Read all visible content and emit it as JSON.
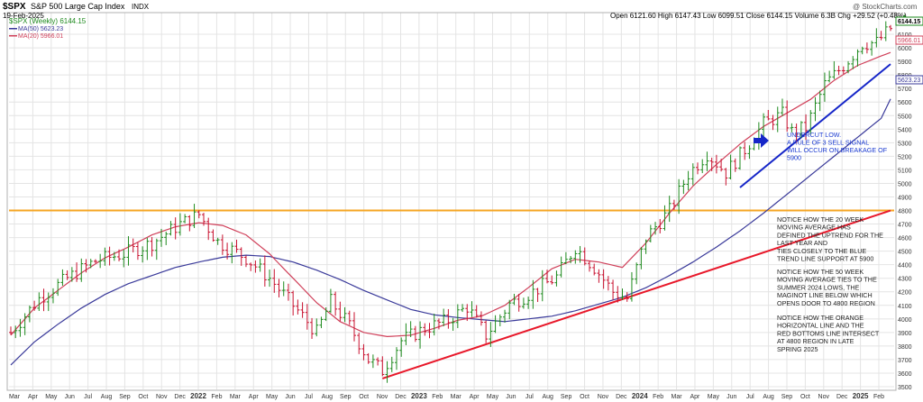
{
  "header": {
    "symbol": "$SPX",
    "name": "S&P 500 Large Cap Index",
    "exchange": "INDX",
    "date": "19-Feb-2025",
    "watermark": "@ StockCharts.com",
    "legend_symbol": "$SPX (Weekly) 6144.15",
    "legend_ma50": "MA(50) 5623.23",
    "legend_ma20": "MA(20) 5966.01",
    "ohlc": "Open 6121.60  High 6147.43  Low 6099.51  Close 6144.15  Volume 6.3B  Chg +29.52 (+0.48%)",
    "ohlc_arrow": "▲"
  },
  "annotations": {
    "undercut": [
      "UNDERCUT LOW.",
      "A RULE OF 3 SELL SIGNAL",
      "WILL OCCUR ON BREAKAGE OF",
      "5900"
    ],
    "note1": [
      "NOTICE HOW THE 20 WEEK",
      "MOVING AVERAGE HAS",
      "DEFINED THE UPTREND FOR THE",
      "LAST YEAR AND",
      "TIES CLOSELY TO THE BLUE",
      "TREND LINE SUPPORT AT 5900"
    ],
    "note2": [
      "NOTICE HOW THE 50 WEEK",
      "MOVING AVERAGE TIES TO THE",
      "SUMMER 2024 LOWS, THE",
      "MAGINOT LINE BELOW WHICH",
      "OPENS DOOR TO 4800 REGION"
    ],
    "note3": [
      "NOTICE HOW THE ORANGE",
      "HORIZONTAL LINE AND THE",
      "RED BOTTOMS LINE INTERSECT",
      "AT 4800 REGION IN LATE",
      "SPRING 2025"
    ]
  },
  "colors": {
    "up": "#1e8a1e",
    "down": "#c8102e",
    "ma20": "#d0405a",
    "ma50": "#3a3a9a",
    "orange": "#f5a623",
    "red": "#e8182a",
    "blue": "#1626c8",
    "note": "#1a3ad0",
    "grid": "#e4e4e4"
  },
  "chart_data": {
    "type": "candlestick-ohlc-weekly",
    "ylim": [
      3480,
      6260
    ],
    "yticks": [
      3500,
      3600,
      3700,
      3800,
      3900,
      4000,
      4100,
      4200,
      4300,
      4400,
      4500,
      4600,
      4700,
      4800,
      4900,
      5000,
      5100,
      5200,
      5300,
      5400,
      5500,
      5600,
      5700,
      5800,
      5900,
      6000,
      6100
    ],
    "price_labels": {
      "last": "6144.15",
      "ma20": "5966.01",
      "ma50": "5623.23"
    },
    "xticks": [
      "Mar",
      "Apr",
      "May",
      "Jun",
      "Jul",
      "Aug",
      "Sep",
      "Oct",
      "Nov",
      "Dec",
      "2022",
      "Feb",
      "Mar",
      "Apr",
      "May",
      "Jun",
      "Jul",
      "Aug",
      "Sep",
      "Oct",
      "Nov",
      "Dec",
      "2023",
      "Feb",
      "Mar",
      "Apr",
      "May",
      "Jun",
      "Jul",
      "Aug",
      "Sep",
      "Oct",
      "Nov",
      "Dec",
      "2024",
      "Feb",
      "Mar",
      "Apr",
      "May",
      "Jun",
      "Jul",
      "Aug",
      "Sep",
      "Oct",
      "Nov",
      "Dec",
      "2025",
      "Feb"
    ],
    "series": [
      {
        "name": "$SPX (Weekly)",
        "kind": "price"
      },
      {
        "name": "MA(50)",
        "kind": "ma50",
        "points": [
          [
            0,
            3660
          ],
          [
            5,
            3830
          ],
          [
            10,
            3960
          ],
          [
            15,
            4080
          ],
          [
            20,
            4180
          ],
          [
            25,
            4260
          ],
          [
            30,
            4320
          ],
          [
            35,
            4380
          ],
          [
            40,
            4420
          ],
          [
            45,
            4455
          ],
          [
            50,
            4470
          ],
          [
            55,
            4460
          ],
          [
            60,
            4420
          ],
          [
            65,
            4360
          ],
          [
            70,
            4290
          ],
          [
            75,
            4210
          ],
          [
            80,
            4140
          ],
          [
            85,
            4070
          ],
          [
            90,
            4030
          ],
          [
            95,
            4010
          ],
          [
            100,
            3995
          ],
          [
            105,
            3980
          ],
          [
            110,
            4000
          ],
          [
            115,
            4020
          ],
          [
            120,
            4060
          ],
          [
            125,
            4110
          ],
          [
            130,
            4160
          ],
          [
            135,
            4230
          ],
          [
            140,
            4320
          ],
          [
            145,
            4420
          ],
          [
            150,
            4530
          ],
          [
            155,
            4650
          ],
          [
            160,
            4780
          ],
          [
            165,
            4920
          ],
          [
            170,
            5060
          ],
          [
            175,
            5200
          ],
          [
            180,
            5340
          ],
          [
            185,
            5480
          ],
          [
            187,
            5623
          ]
        ]
      },
      {
        "name": "MA(20)",
        "kind": "ma20",
        "points": [
          [
            0,
            3880
          ],
          [
            5,
            4080
          ],
          [
            10,
            4210
          ],
          [
            15,
            4340
          ],
          [
            20,
            4450
          ],
          [
            25,
            4530
          ],
          [
            30,
            4620
          ],
          [
            35,
            4680
          ],
          [
            40,
            4710
          ],
          [
            45,
            4690
          ],
          [
            50,
            4620
          ],
          [
            55,
            4480
          ],
          [
            60,
            4300
          ],
          [
            65,
            4120
          ],
          [
            70,
            3980
          ],
          [
            75,
            3900
          ],
          [
            80,
            3870
          ],
          [
            85,
            3880
          ],
          [
            90,
            3930
          ],
          [
            95,
            3990
          ],
          [
            100,
            4020
          ],
          [
            105,
            4100
          ],
          [
            110,
            4230
          ],
          [
            115,
            4370
          ],
          [
            120,
            4440
          ],
          [
            125,
            4420
          ],
          [
            130,
            4380
          ],
          [
            135,
            4560
          ],
          [
            140,
            4780
          ],
          [
            145,
            4980
          ],
          [
            150,
            5140
          ],
          [
            155,
            5290
          ],
          [
            160,
            5420
          ],
          [
            165,
            5520
          ],
          [
            170,
            5620
          ],
          [
            175,
            5760
          ],
          [
            180,
            5870
          ],
          [
            185,
            5940
          ],
          [
            187,
            5966
          ]
        ]
      },
      {
        "name": "",
        "kind": "close",
        "points": [
          [
            0,
            3900
          ],
          [
            6,
            4150
          ],
          [
            12,
            4300
          ],
          [
            18,
            4430
          ],
          [
            24,
            4480
          ],
          [
            30,
            4560
          ],
          [
            36,
            4700
          ],
          [
            40,
            4770
          ],
          [
            44,
            4570
          ],
          [
            50,
            4450
          ],
          [
            55,
            4300
          ],
          [
            60,
            4100
          ],
          [
            65,
            3900
          ],
          [
            68,
            4130
          ],
          [
            72,
            3950
          ],
          [
            76,
            3700
          ],
          [
            79,
            3620
          ],
          [
            83,
            3840
          ],
          [
            88,
            3930
          ],
          [
            93,
            3990
          ],
          [
            97,
            4090
          ],
          [
            101,
            3880
          ],
          [
            106,
            4110
          ],
          [
            111,
            4200
          ],
          [
            116,
            4310
          ],
          [
            120,
            4530
          ],
          [
            124,
            4380
          ],
          [
            128,
            4200
          ],
          [
            131,
            4150
          ],
          [
            135,
            4600
          ],
          [
            140,
            4800
          ],
          [
            144,
            5070
          ],
          [
            148,
            5220
          ],
          [
            152,
            5080
          ],
          [
            156,
            5250
          ],
          [
            160,
            5440
          ],
          [
            164,
            5510
          ],
          [
            166,
            5380
          ],
          [
            169,
            5410
          ],
          [
            173,
            5730
          ],
          [
            177,
            5870
          ],
          [
            181,
            6030
          ],
          [
            184,
            6040
          ],
          [
            187,
            6144
          ]
        ]
      }
    ],
    "lines": [
      {
        "name": "",
        "kind": "orange-horizontal",
        "y": 4800
      },
      {
        "name": "",
        "kind": "red-bottoms",
        "from": [
          79,
          3560
        ],
        "to": [
          187,
          4800
        ]
      },
      {
        "name": "",
        "kind": "blue-trend",
        "from": [
          155,
          4970
        ],
        "to": [
          187,
          5880
        ]
      }
    ]
  }
}
